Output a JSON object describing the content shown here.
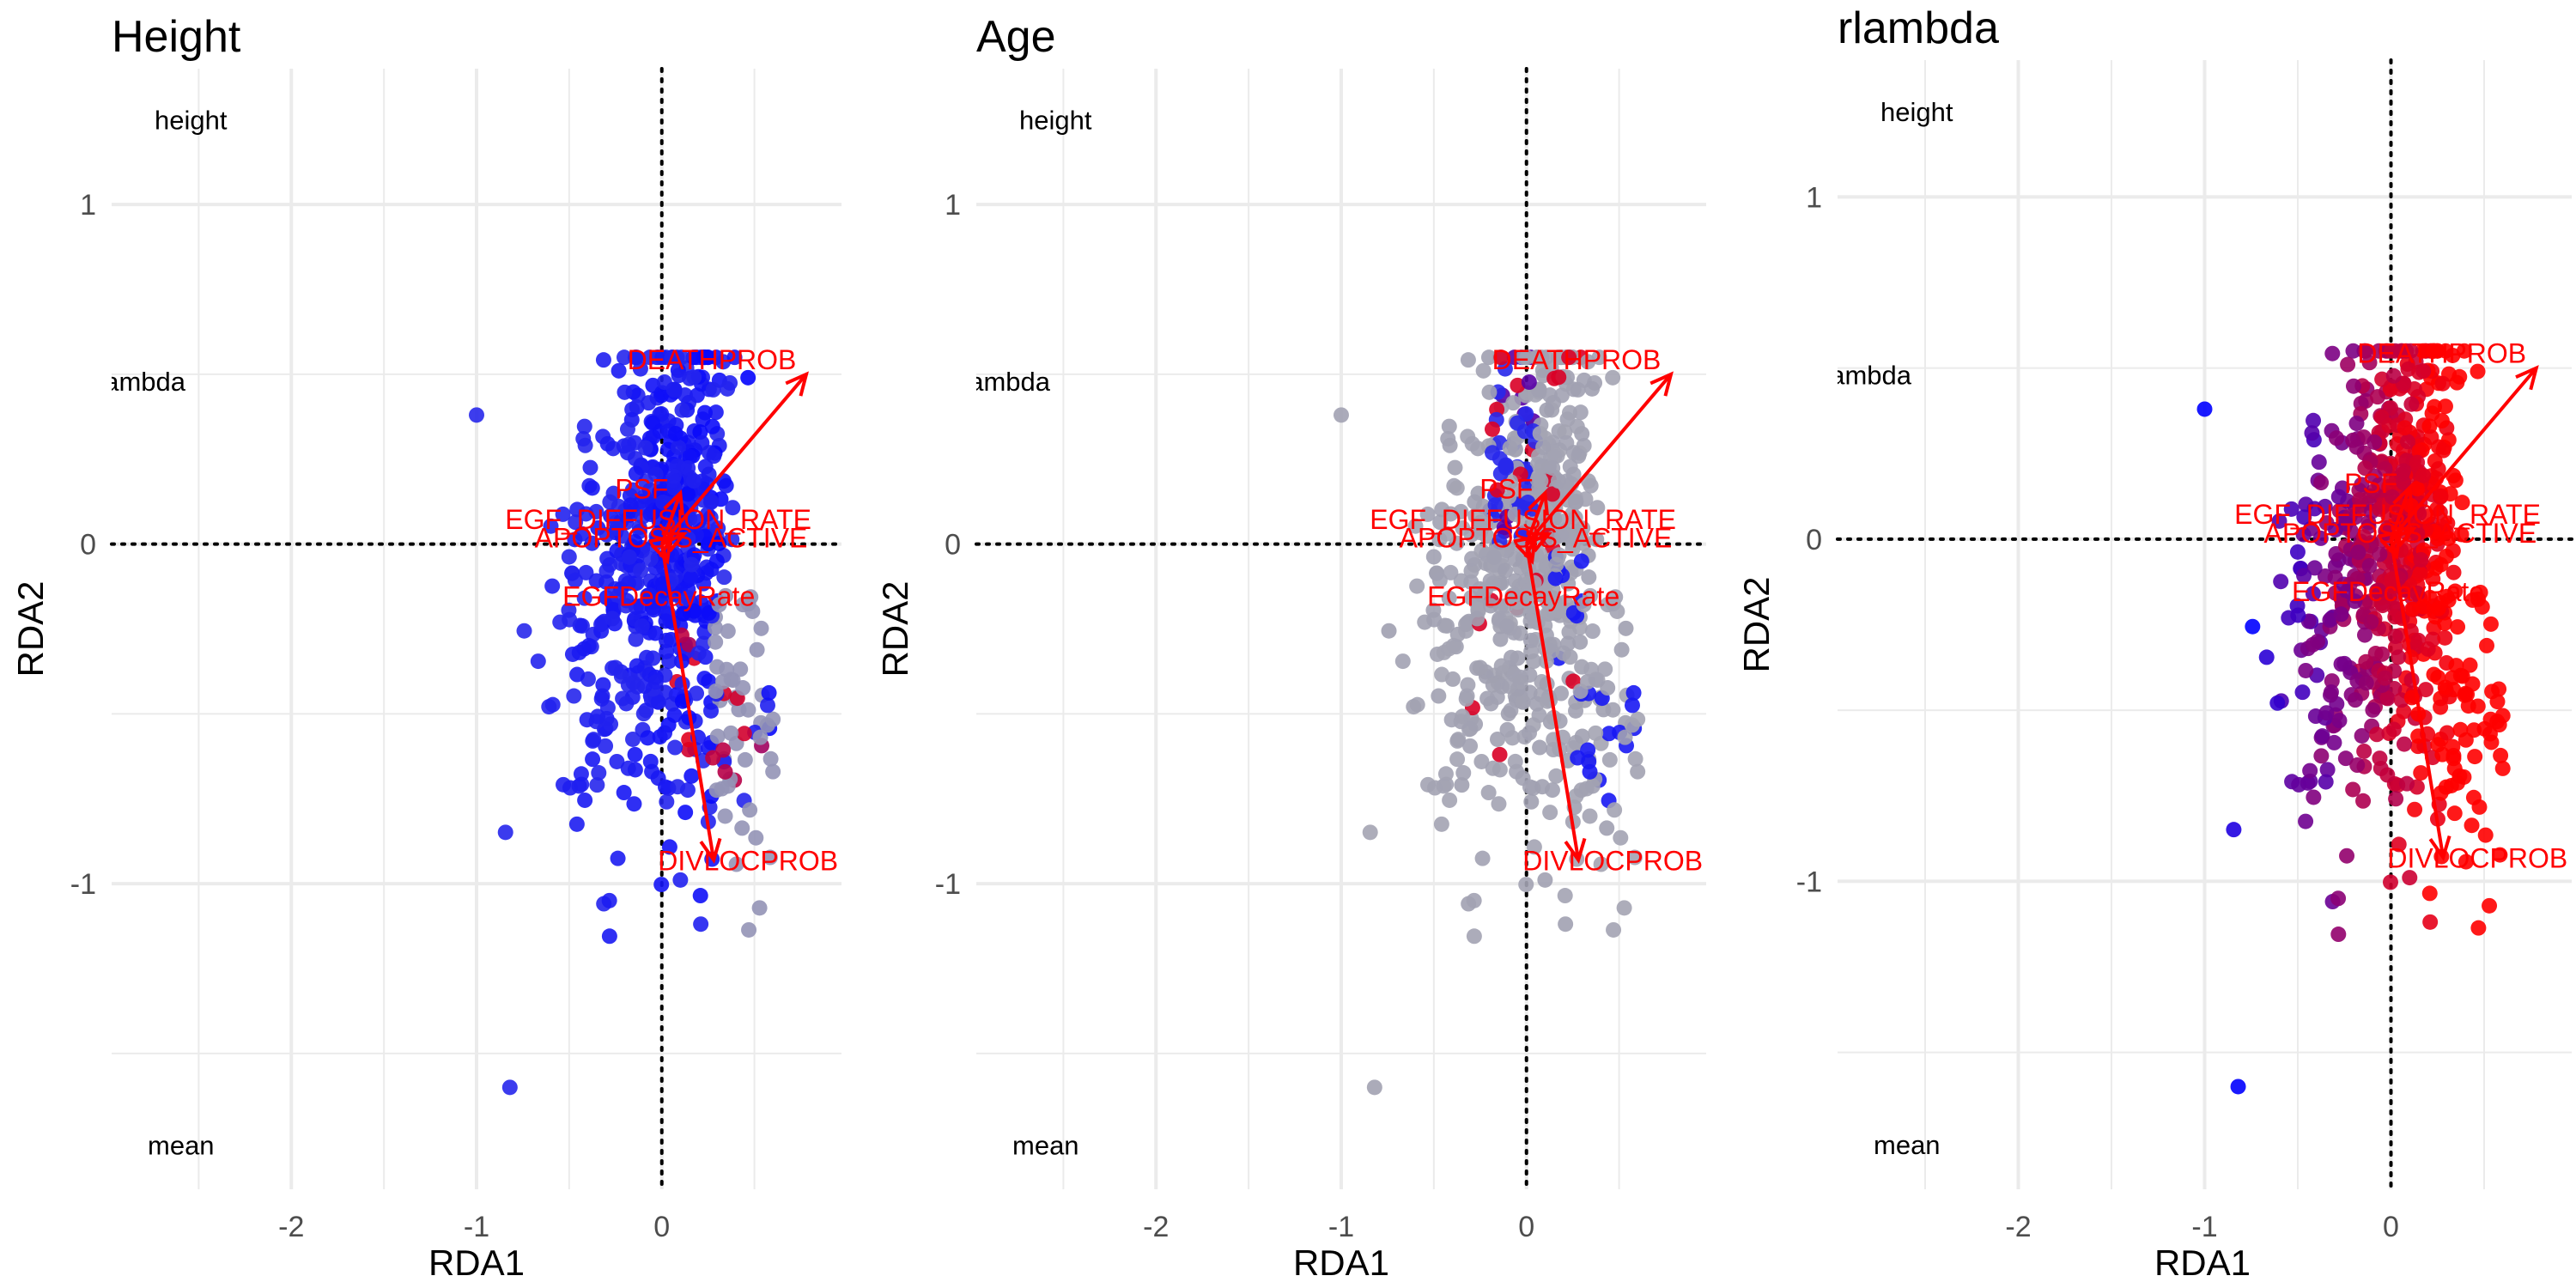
{
  "chart_data": [
    {
      "type": "scatter",
      "title": "Height",
      "xlabel": "RDA1",
      "ylabel": "RDA2",
      "xlim": [
        -2.97,
        0.97
      ],
      "ylim": [
        -1.9,
        1.4
      ],
      "x_ticks": [
        "-2",
        "-1",
        "0"
      ],
      "y_ticks": [
        "1",
        "0",
        "-1"
      ],
      "grid": true,
      "annotations": [
        "height",
        "rlambda",
        "mean"
      ],
      "color_scale": {
        "low": "#0000ff",
        "mid": "#a0a0b0",
        "high": "#ff0000"
      },
      "biplot_arrows": [
        {
          "label": "DEATHPROB",
          "x": 0.78,
          "y": 0.5
        },
        {
          "label": "DIVLOCPROB",
          "x": 0.28,
          "y": -0.93
        },
        {
          "label": "PSF",
          "x": 0.1,
          "y": 0.15
        },
        {
          "label": "EGF_DIFFUSION_RATE",
          "x": 0.12,
          "y": 0.03
        },
        {
          "label": "APOPTOSIS_ACTIVE",
          "x": 0.05,
          "y": 0.02
        },
        {
          "label": "EGFDecayRate",
          "x": 0.03,
          "y": -0.05
        }
      ],
      "seed": 11
    },
    {
      "type": "scatter",
      "title": "Age",
      "xlabel": "RDA1",
      "ylabel": "RDA2",
      "xlim": [
        -2.97,
        0.97
      ],
      "ylim": [
        -1.9,
        1.4
      ],
      "x_ticks": [
        "-2",
        "-1",
        "0"
      ],
      "y_ticks": [
        "1",
        "0",
        "-1"
      ],
      "grid": true,
      "annotations": [
        "height",
        "rlambda",
        "mean"
      ],
      "color_scale": {
        "low": "#0000ff",
        "mid": "#a0a0b0",
        "high": "#ff0000"
      },
      "biplot_arrows": [
        {
          "label": "DEATHPROB",
          "x": 0.78,
          "y": 0.5
        },
        {
          "label": "DIVLOCPROB",
          "x": 0.28,
          "y": -0.93
        },
        {
          "label": "PSF",
          "x": 0.1,
          "y": 0.15
        },
        {
          "label": "EGF_DIFFUSION_RATE",
          "x": 0.12,
          "y": 0.03
        },
        {
          "label": "APOPTOSIS_ACTIVE",
          "x": 0.05,
          "y": 0.02
        },
        {
          "label": "EGFDecayRate",
          "x": 0.03,
          "y": -0.05
        }
      ],
      "seed": 11
    },
    {
      "type": "scatter",
      "title": "rlambda",
      "xlabel": "RDA1",
      "ylabel": "RDA2",
      "xlim": [
        -2.97,
        0.97
      ],
      "ylim": [
        -1.9,
        1.4
      ],
      "x_ticks": [
        "-2",
        "-1",
        "0"
      ],
      "y_ticks": [
        "1",
        "0",
        "-1"
      ],
      "grid": true,
      "annotations": [
        "height",
        "rlambda",
        "mean"
      ],
      "color_scale": {
        "low": "#0000ff",
        "mid": "#a0a0b0",
        "high": "#ff0000"
      },
      "biplot_arrows": [
        {
          "label": "DEATHPROB",
          "x": 0.78,
          "y": 0.5
        },
        {
          "label": "DIVLOCPROB",
          "x": 0.28,
          "y": -0.93
        },
        {
          "label": "PSF",
          "x": 0.1,
          "y": 0.15
        },
        {
          "label": "EGF_DIFFUSION_RATE",
          "x": 0.12,
          "y": 0.03
        },
        {
          "label": "APOPTOSIS_ACTIVE",
          "x": 0.05,
          "y": 0.02
        },
        {
          "label": "EGFDecayRate",
          "x": 0.03,
          "y": -0.05
        }
      ],
      "seed": 11
    }
  ]
}
